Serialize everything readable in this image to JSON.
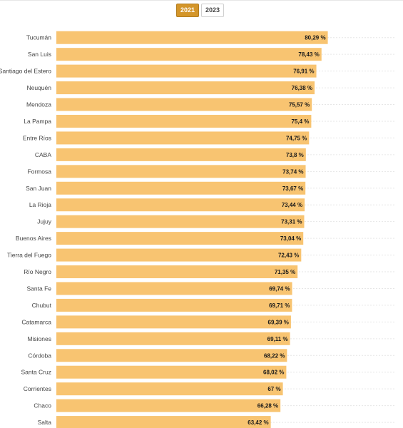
{
  "tabs": [
    {
      "label": "2021",
      "active": true
    },
    {
      "label": "2023",
      "active": false
    }
  ],
  "colors": {
    "bar": "#f8c471",
    "accent": "#d4962a",
    "grid": "#e6e6e6"
  },
  "chart_data": {
    "type": "bar",
    "orientation": "horizontal",
    "grid": true,
    "categories": [
      "Tucumán",
      "San Luis",
      "Santiago del Estero",
      "Neuquén",
      "Mendoza",
      "La Pampa",
      "Entre Ríos",
      "CABA",
      "Formosa",
      "San Juan",
      "La Rioja",
      "Jujuy",
      "Buenos Aires",
      "Tierra del Fuego",
      "Río Negro",
      "Santa Fe",
      "Chubut",
      "Catamarca",
      "Misiones",
      "Córdoba",
      "Santa Cruz",
      "Corrientes",
      "Chaco",
      "Salta"
    ],
    "values": [
      80.29,
      78.43,
      76.91,
      76.38,
      75.57,
      75.4,
      74.75,
      73.8,
      73.74,
      73.67,
      73.44,
      73.31,
      73.04,
      72.43,
      71.35,
      69.74,
      69.71,
      69.39,
      69.11,
      68.22,
      68.02,
      67,
      66.28,
      63.42
    ],
    "value_labels": [
      "80,29 %",
      "78,43 %",
      "76,91 %",
      "76,38 %",
      "75,57 %",
      "75,4 %",
      "74,75 %",
      "73,8 %",
      "73,74 %",
      "73,67 %",
      "73,44 %",
      "73,31 %",
      "73,04 %",
      "72,43 %",
      "71,35 %",
      "69,74 %",
      "69,71 %",
      "69,39 %",
      "69,11 %",
      "68,22 %",
      "68,02 %",
      "67 %",
      "66,28 %",
      "63,42 %"
    ],
    "xlim": [
      0,
      100
    ]
  }
}
